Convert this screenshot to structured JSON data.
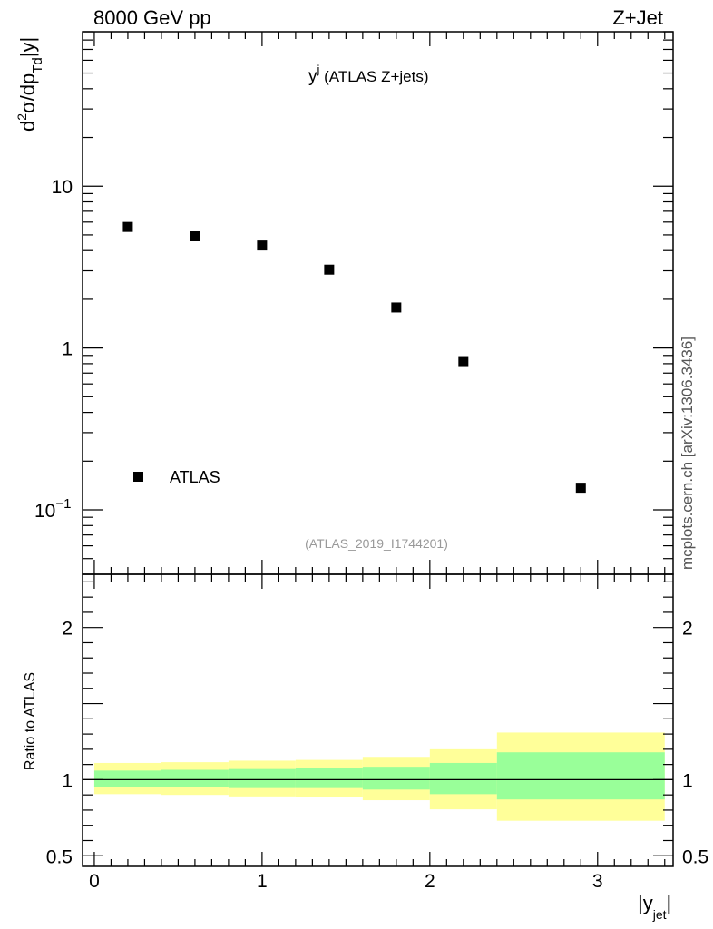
{
  "header": {
    "left": "8000 GeV pp",
    "right": "Z+Jet"
  },
  "credit": "mcplots.cern.ch [arXiv:1306.3436]",
  "chart_data": [
    {
      "type": "scatter",
      "panel": "main",
      "title": "y^j (ATLAS Z+jets)",
      "title_main": "y",
      "title_sup": "j",
      "title_rest": " (ATLAS Z+jets)",
      "ylabel": "d²σ/dp_Td|y|",
      "ylabel_parts": {
        "d": "d",
        "sup": "2",
        "mid": "σ/dp",
        "sub": "Td",
        "end": "|y|"
      },
      "yscale": "log",
      "ylim": [
        0.04,
        90
      ],
      "xlim": [
        -0.07,
        3.45
      ],
      "yticks": [
        {
          "value": 10,
          "label": "10"
        },
        {
          "value": 1,
          "label": "1"
        },
        {
          "value": 0.1,
          "base": "10",
          "exp": "−1"
        }
      ],
      "annotation": "(ATLAS_2019_I1744201)",
      "legend": {
        "position": "bottom-left",
        "entries": [
          {
            "label": "ATLAS",
            "marker": "square"
          }
        ]
      },
      "series": [
        {
          "name": "ATLAS",
          "x": [
            0.2,
            0.6,
            1.0,
            1.4,
            1.8,
            2.2,
            2.9
          ],
          "y": [
            5.6,
            4.9,
            4.3,
            3.05,
            1.78,
            0.83,
            0.137
          ]
        }
      ]
    },
    {
      "type": "area",
      "panel": "ratio",
      "ylabel": "Ratio to ATLAS",
      "xlabel": "|y_jet|",
      "xlabel_parts": {
        "bar1": "|",
        "main": "y",
        "sub": "jet",
        "bar2": "|"
      },
      "ylim": [
        0.43,
        2.35
      ],
      "xlim": [
        -0.07,
        3.45
      ],
      "xticks": [
        "0",
        "1",
        "2",
        "3"
      ],
      "yticks": [
        "0.5",
        "1",
        "2"
      ],
      "bins": [
        [
          0.0,
          0.4
        ],
        [
          0.4,
          0.8
        ],
        [
          0.8,
          1.2
        ],
        [
          1.2,
          1.6
        ],
        [
          1.6,
          2.0
        ],
        [
          2.0,
          2.4
        ],
        [
          2.4,
          3.4
        ]
      ],
      "stat_band": {
        "color": "#99ff99",
        "lo": [
          0.95,
          0.95,
          0.945,
          0.945,
          0.935,
          0.905,
          0.87
        ],
        "hi": [
          1.06,
          1.065,
          1.07,
          1.075,
          1.085,
          1.11,
          1.18
        ]
      },
      "total_band": {
        "color": "#ffff99",
        "lo": [
          0.905,
          0.9,
          0.89,
          0.885,
          0.865,
          0.805,
          0.73
        ],
        "hi": [
          1.11,
          1.115,
          1.125,
          1.13,
          1.15,
          1.2,
          1.31
        ]
      },
      "reference": 1
    }
  ]
}
